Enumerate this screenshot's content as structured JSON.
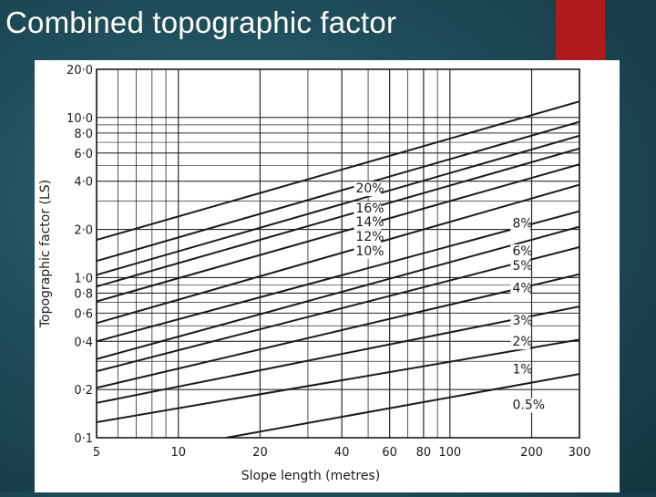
{
  "slide": {
    "title": "Combined topographic factor"
  },
  "colors": {
    "title_text": "#ffffff",
    "accent": "#b01c1c",
    "background": "#1f4d5a",
    "chart_bg": "#ffffff",
    "ink": "#1a1a1a"
  },
  "chart_data": {
    "type": "line",
    "title": "",
    "xlabel": "Slope length (metres)",
    "ylabel": "Topographic factor (LS)",
    "x_scale": "log",
    "y_scale": "log",
    "xlim": [
      5,
      300
    ],
    "ylim": [
      0.1,
      20
    ],
    "grid": true,
    "x_ticks": [
      5,
      10,
      20,
      40,
      60,
      80,
      100,
      200,
      300
    ],
    "x_tick_labels": [
      "5",
      "10",
      "20",
      "40",
      "60",
      "80",
      "100",
      "200",
      "300"
    ],
    "y_ticks": [
      0.1,
      0.2,
      0.4,
      0.6,
      0.8,
      1.0,
      2.0,
      4.0,
      6.0,
      8.0,
      10.0,
      20.0
    ],
    "y_tick_labels": [
      "0·1",
      "0·2",
      "0·4",
      "0·6",
      "0·8",
      "1·0",
      "2·0",
      "4·0",
      "6·0",
      "8·0",
      "10·0",
      "20·0"
    ],
    "series": [
      {
        "name": "20%",
        "x": [
          5,
          300
        ],
        "y": [
          1.72,
          12.6
        ]
      },
      {
        "name": "16%",
        "x": [
          5,
          300
        ],
        "y": [
          1.27,
          9.4
        ]
      },
      {
        "name": "14%",
        "x": [
          5,
          300
        ],
        "y": [
          1.04,
          7.7
        ]
      },
      {
        "name": "12%",
        "x": [
          5,
          300
        ],
        "y": [
          0.88,
          6.4
        ]
      },
      {
        "name": "10%",
        "x": [
          5,
          300
        ],
        "y": [
          0.71,
          5.1
        ]
      },
      {
        "name": "8%",
        "x": [
          5,
          300
        ],
        "y": [
          0.52,
          3.8
        ]
      },
      {
        "name": "6%",
        "x": [
          5,
          300
        ],
        "y": [
          0.4,
          2.6
        ]
      },
      {
        "name": "5%",
        "x": [
          5,
          300
        ],
        "y": [
          0.31,
          2.08
        ]
      },
      {
        "name": "4%",
        "x": [
          5,
          300
        ],
        "y": [
          0.26,
          1.55
        ]
      },
      {
        "name": "3%",
        "x": [
          5,
          300
        ],
        "y": [
          0.205,
          1.05
        ]
      },
      {
        "name": "2%",
        "x": [
          5,
          300
        ],
        "y": [
          0.165,
          0.66
        ]
      },
      {
        "name": "1%",
        "x": [
          5,
          300
        ],
        "y": [
          0.125,
          0.41
        ]
      },
      {
        "name": "0.5%",
        "x": [
          15,
          300
        ],
        "y": [
          0.1,
          0.25
        ]
      }
    ],
    "series_labels": [
      {
        "text": "20%",
        "x": 45,
        "y": 3.4
      },
      {
        "text": "16%",
        "x": 45,
        "y": 2.55
      },
      {
        "text": "14%",
        "x": 45,
        "y": 2.1
      },
      {
        "text": "12%",
        "x": 45,
        "y": 1.7
      },
      {
        "text": "10%",
        "x": 45,
        "y": 1.38
      },
      {
        "text": "8%",
        "x": 170,
        "y": 2.05
      },
      {
        "text": "6%",
        "x": 170,
        "y": 1.38
      },
      {
        "text": "5%",
        "x": 170,
        "y": 1.12
      },
      {
        "text": "4%",
        "x": 170,
        "y": 0.81
      },
      {
        "text": "3%",
        "x": 170,
        "y": 0.51
      },
      {
        "text": "2%",
        "x": 170,
        "y": 0.375
      },
      {
        "text": "1%",
        "x": 170,
        "y": 0.252
      },
      {
        "text": "0.5%",
        "x": 170,
        "y": 0.151
      }
    ]
  }
}
